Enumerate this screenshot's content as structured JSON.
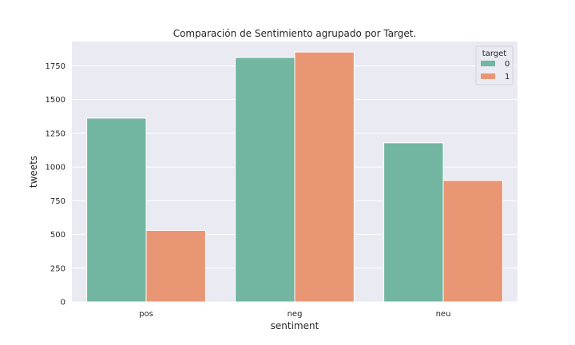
{
  "chart_data": {
    "type": "bar",
    "title": "Comparación de Sentimiento agrupado por Target.",
    "xlabel": "sentiment",
    "ylabel": "tweets",
    "categories": [
      "pos",
      "neg",
      "neu"
    ],
    "series": [
      {
        "name": "0",
        "values": [
          1362,
          1812,
          1179
        ],
        "color": "#72b6a1"
      },
      {
        "name": "1",
        "values": [
          530,
          1852,
          900
        ],
        "color": "#e99675"
      }
    ],
    "ylim": [
      0,
      1930
    ],
    "yticks": [
      0,
      250,
      500,
      750,
      1000,
      1250,
      1500,
      1750
    ],
    "ytick_labels": [
      "0",
      "250",
      "500",
      "750",
      "1000",
      "1250",
      "1500",
      "1750"
    ],
    "grid": true,
    "legend": {
      "title": "target",
      "placement": "top-right"
    },
    "background_color": "#eaeaf2"
  }
}
